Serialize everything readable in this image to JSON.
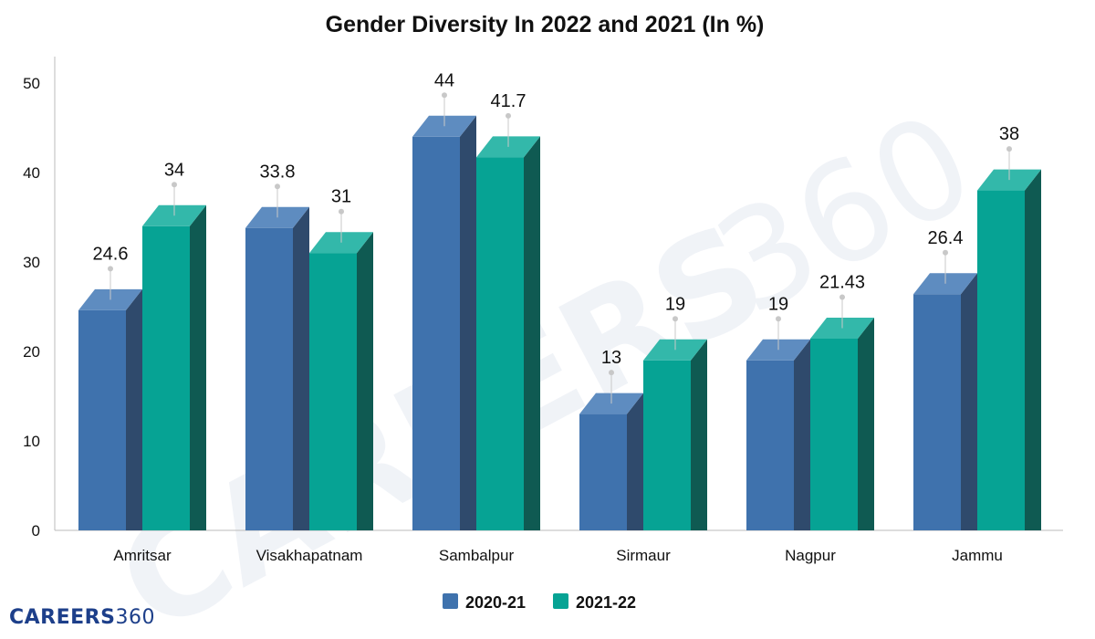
{
  "chart_data": {
    "type": "bar",
    "title": "Gender Diversity In 2022 and 2021 (In %)",
    "categories": [
      "Amritsar",
      "Visakhapatnam",
      "Sambalpur",
      "Sirmaur",
      "Nagpur",
      "Jammu"
    ],
    "series": [
      {
        "name": "2020-21",
        "values": [
          24.6,
          33.8,
          44,
          13,
          19,
          26.4
        ],
        "labels": [
          "24.6",
          "33.8",
          "44",
          "13",
          "19",
          "26.4"
        ]
      },
      {
        "name": "2021-22",
        "values": [
          34,
          31,
          41.7,
          19,
          21.43,
          38
        ],
        "labels": [
          "34",
          "31",
          "41.7",
          "19",
          "21.43",
          "38"
        ]
      }
    ],
    "yticks": [
      "0",
      "10",
      "20",
      "30",
      "40",
      "50"
    ],
    "ylim": [
      0,
      53
    ],
    "grid": false,
    "legend_position": "bottom-center"
  },
  "colors": {
    "series_front": [
      "#3f72ad",
      "#06a394"
    ],
    "series_top": [
      "#5e8cc0",
      "#33b8aa"
    ],
    "series_side": [
      "#2f4a6c",
      "#0f5a52"
    ],
    "axis": "#bbbbbb",
    "text": "#111111"
  },
  "watermark": {
    "part1": "CAREERS",
    "part2": "360"
  },
  "brand": {
    "part1": "CAREERS",
    "part2": "360"
  }
}
